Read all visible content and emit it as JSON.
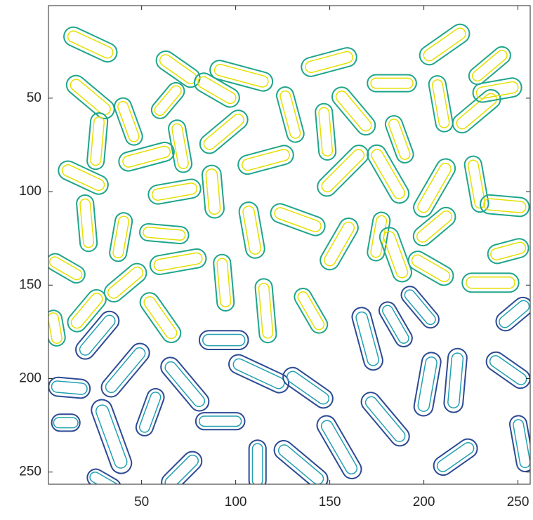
{
  "chart_data": {
    "type": "contour",
    "xlim": [
      0.5,
      256.5
    ],
    "ylim": [
      0.5,
      256.5
    ],
    "y_reversed": true,
    "xticks": [
      50,
      100,
      150,
      200,
      250
    ],
    "yticks": [
      50,
      100,
      150,
      200,
      250
    ],
    "series": [
      {
        "color": "#1fa58a",
        "inner_color": "#e4e000",
        "grains": [
          [
            22.8,
            21.3,
            30,
            10,
            25
          ],
          [
            69.4,
            34.5,
            26,
            10,
            35
          ],
          [
            103,
            38,
            34,
            10,
            15
          ],
          [
            149.6,
            30.7,
            30,
            10,
            -15
          ],
          [
            183,
            42,
            26,
            9,
            0
          ],
          [
            211,
            21.3,
            30,
            10,
            -35
          ],
          [
            235,
            32.6,
            26,
            9,
            -40
          ],
          [
            22.8,
            49.4,
            30,
            10,
            40
          ],
          [
            43,
            62.5,
            26,
            9,
            70
          ],
          [
            64,
            51.3,
            22,
            9,
            -50
          ],
          [
            90,
            45.7,
            26,
            10,
            30
          ],
          [
            93.7,
            68,
            30,
            10,
            -40
          ],
          [
            52.6,
            81.3,
            30,
            10,
            -15
          ],
          [
            70.5,
            75.7,
            28,
            9,
            80
          ],
          [
            26.5,
            73,
            30,
            9,
            -85
          ],
          [
            129,
            58.8,
            30,
            9,
            75
          ],
          [
            147.8,
            68,
            30,
            9,
            85
          ],
          [
            162.7,
            56.9,
            30,
            10,
            50
          ],
          [
            187,
            72,
            26,
            9,
            70
          ],
          [
            209,
            53,
            30,
            9,
            80
          ],
          [
            228,
            57,
            30,
            10,
            -40
          ],
          [
            239,
            45.7,
            26,
            10,
            -10
          ],
          [
            116,
            83,
            30,
            10,
            -15
          ],
          [
            157,
            88.8,
            34,
            10,
            -45
          ],
          [
            181,
            90.6,
            34,
            10,
            60
          ],
          [
            19,
            92.5,
            28,
            10,
            25
          ],
          [
            67.5,
            100,
            28,
            10,
            -10
          ],
          [
            88,
            100,
            28,
            10,
            85
          ],
          [
            205.6,
            98,
            34,
            10,
            -60
          ],
          [
            228,
            96,
            30,
            9,
            80
          ],
          [
            243,
            107.5,
            26,
            10,
            5
          ],
          [
            20.9,
            116.9,
            30,
            9,
            85
          ],
          [
            133,
            115,
            30,
            10,
            20
          ],
          [
            108.6,
            120.6,
            30,
            10,
            80
          ],
          [
            62,
            122.5,
            26,
            9,
            5
          ],
          [
            39,
            124.3,
            26,
            9,
            -80
          ],
          [
            155,
            128,
            30,
            10,
            -60
          ],
          [
            176,
            124,
            26,
            9,
            -80
          ],
          [
            205.6,
            118.7,
            26,
            10,
            -40
          ],
          [
            69.4,
            137.5,
            30,
            10,
            -10
          ],
          [
            41.4,
            148.7,
            26,
            10,
            -40
          ],
          [
            9.7,
            141,
            22,
            9,
            30
          ],
          [
            93.7,
            148.7,
            30,
            9,
            85
          ],
          [
            185,
            133.7,
            30,
            10,
            70
          ],
          [
            203.7,
            141,
            26,
            10,
            30
          ],
          [
            244.8,
            131.8,
            22,
            10,
            -15
          ],
          [
            235.4,
            148.7,
            30,
            10,
            0
          ],
          [
            20.9,
            163.7,
            26,
            10,
            -50
          ],
          [
            4,
            173,
            19,
            9,
            80
          ],
          [
            116,
            163.7,
            34,
            9,
            85
          ],
          [
            60,
            167.4,
            30,
            10,
            55
          ],
          [
            140,
            163.7,
            26,
            9,
            60
          ]
        ]
      },
      {
        "color": "#2d4a93",
        "inner_color": "#22a0b0",
        "grains": [
          [
            26.5,
            176.8,
            30,
            10,
            -50
          ],
          [
            93.7,
            179.4,
            26,
            10,
            0
          ],
          [
            170,
            178.7,
            34,
            10,
            75
          ],
          [
            185,
            171,
            26,
            9,
            60
          ],
          [
            198,
            161.8,
            26,
            9,
            50
          ],
          [
            248,
            165.5,
            22,
            10,
            -40
          ],
          [
            41.4,
            195.5,
            34,
            10,
            -50
          ],
          [
            73,
            203,
            34,
            10,
            50
          ],
          [
            112.3,
            197.4,
            34,
            10,
            25
          ],
          [
            138.4,
            204.9,
            30,
            10,
            35
          ],
          [
            11.6,
            204.9,
            22,
            10,
            5
          ],
          [
            201.9,
            203,
            34,
            10,
            -80
          ],
          [
            216.8,
            201,
            34,
            10,
            -85
          ],
          [
            244.8,
            195.5,
            26,
            10,
            35
          ],
          [
            54.5,
            218,
            26,
            9,
            -70
          ],
          [
            34,
            231,
            41,
            11,
            70
          ],
          [
            91.8,
            222.8,
            26,
            9,
            0
          ],
          [
            179.5,
            221.7,
            34,
            10,
            50
          ],
          [
            155,
            236.7,
            37,
            10,
            60
          ],
          [
            71.3,
            249.8,
            26,
            10,
            -45
          ],
          [
            111.6,
            246,
            26,
            9,
            90
          ],
          [
            134.7,
            246,
            34,
            10,
            40
          ],
          [
            216.8,
            242,
            26,
            10,
            -35
          ],
          [
            252,
            234.8,
            30,
            9,
            80
          ],
          [
            9.7,
            223.6,
            15,
            9,
            0
          ],
          [
            30,
            255.5,
            19,
            9,
            30
          ]
        ]
      }
    ]
  }
}
